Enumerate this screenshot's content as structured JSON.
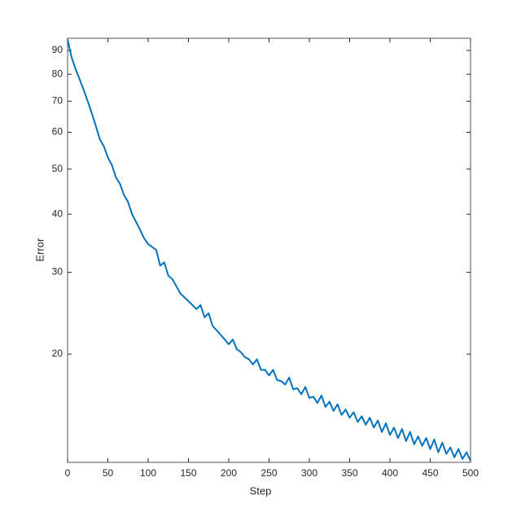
{
  "chart_data": {
    "type": "line",
    "xlabel": "Step",
    "ylabel": "Error",
    "log_y": true,
    "color": "#0072bd",
    "x": [
      0,
      5,
      10,
      15,
      20,
      25,
      30,
      35,
      40,
      45,
      50,
      55,
      60,
      65,
      70,
      75,
      80,
      85,
      90,
      95,
      100,
      105,
      110,
      115,
      120,
      125,
      130,
      135,
      140,
      145,
      150,
      155,
      160,
      165,
      170,
      175,
      180,
      185,
      190,
      195,
      200,
      205,
      210,
      215,
      220,
      225,
      230,
      235,
      240,
      245,
      250,
      255,
      260,
      265,
      270,
      275,
      280,
      285,
      290,
      295,
      300,
      305,
      310,
      315,
      320,
      325,
      330,
      335,
      340,
      345,
      350,
      355,
      360,
      365,
      370,
      375,
      380,
      385,
      390,
      395,
      400,
      405,
      410,
      415,
      420,
      425,
      430,
      435,
      440,
      445,
      450,
      455,
      460,
      465,
      470,
      475,
      480,
      485,
      490,
      495,
      500
    ],
    "values": [
      95,
      87,
      82,
      78,
      74,
      70,
      66,
      62,
      58,
      56,
      53,
      51,
      48,
      46.5,
      44,
      42.5,
      40,
      38.5,
      37,
      35.5,
      34.5,
      34,
      33.5,
      31,
      31.5,
      29.5,
      29,
      28,
      27,
      26.5,
      26,
      25.5,
      25,
      25.5,
      24,
      24.5,
      23,
      22.5,
      22,
      21.5,
      21,
      21.5,
      20.5,
      20.2,
      19.7,
      19.5,
      19,
      19.5,
      18.5,
      18.5,
      18,
      18.5,
      17.6,
      17.5,
      17.2,
      17.8,
      16.8,
      16.9,
      16.4,
      17,
      16.1,
      16.2,
      15.7,
      16.3,
      15.4,
      15.8,
      15.1,
      15.6,
      14.8,
      15.2,
      14.6,
      15,
      14.3,
      14.7,
      14.1,
      14.6,
      13.9,
      14.4,
      13.6,
      14.2,
      13.4,
      13.9,
      13.2,
      13.8,
      13,
      13.6,
      12.8,
      13.3,
      12.7,
      13.2,
      12.5,
      13.1,
      12.3,
      12.9,
      12.2,
      12.6,
      12,
      12.5,
      11.9,
      12.3,
      11.8
    ],
    "xlim": [
      0,
      500
    ],
    "xticks": [
      0,
      50,
      100,
      150,
      200,
      250,
      300,
      350,
      400,
      450,
      500
    ],
    "ylim": [
      11.7,
      95.6
    ],
    "yticks": [
      20,
      30,
      40,
      50,
      60,
      70,
      80,
      90
    ]
  }
}
